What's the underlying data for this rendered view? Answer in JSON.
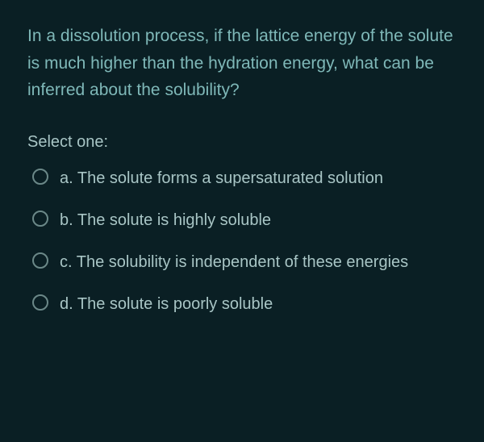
{
  "question": {
    "text": "In a dissolution process, if the lattice energy of the solute is much higher than the hydration energy, what can be inferred about the solubility?",
    "prompt": "Select one:",
    "options": [
      {
        "letter": "a.",
        "text": "The solute forms a supersaturated solution"
      },
      {
        "letter": "b.",
        "text": "The solute is highly soluble"
      },
      {
        "letter": "c.",
        "text": "The solubility is independent of these energies"
      },
      {
        "letter": "d.",
        "text": "The solute is poorly soluble"
      }
    ]
  },
  "colors": {
    "background": "#0a1f24",
    "question_text": "#7fb8b8",
    "option_text": "#a8c5c5",
    "radio_border": "#6b8888"
  },
  "typography": {
    "question_fontsize": 21,
    "prompt_fontsize": 20,
    "option_fontsize": 20,
    "font_family": "Arial"
  }
}
